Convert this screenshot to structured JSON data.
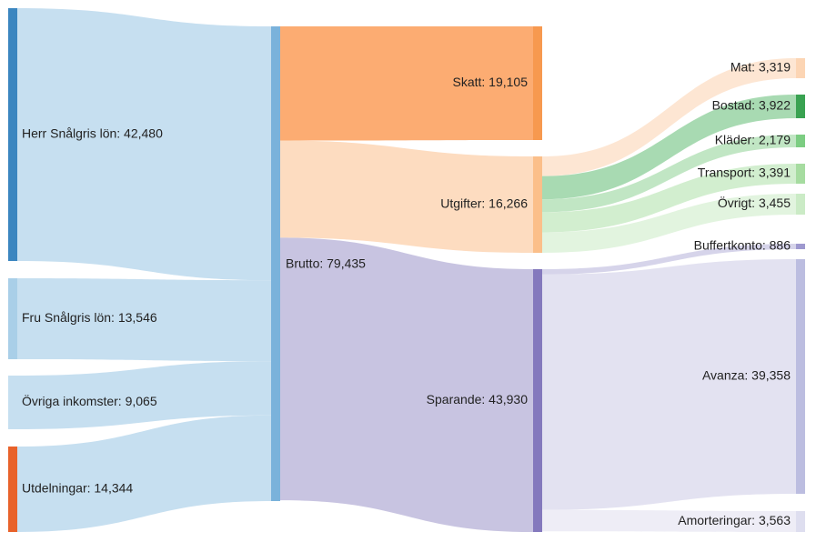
{
  "chart_data": {
    "type": "sankey",
    "nodes": [
      {
        "id": "herr",
        "label": "Herr Snålgris lön: 42,480",
        "value": 42480,
        "color": "#3b86c0"
      },
      {
        "id": "fru",
        "label": "Fru Snålgris lön: 13,546",
        "value": 13546,
        "color": "#a9cfe8"
      },
      {
        "id": "ovriga_ink",
        "label": "Övriga inkomster: 9,065",
        "value": 9065,
        "color": "#c6dff0"
      },
      {
        "id": "utdel",
        "label": "Utdelningar: 14,344",
        "value": 14344,
        "color": "#e8622a"
      },
      {
        "id": "brutto",
        "label": "Brutto: 79,435",
        "value": 79435,
        "color": "#7ab2db"
      },
      {
        "id": "skatt",
        "label": "Skatt: 19,105",
        "value": 19105,
        "color": "#f7994f"
      },
      {
        "id": "utgifter",
        "label": "Utgifter: 16,266",
        "value": 16266,
        "color": "#fbbf8a"
      },
      {
        "id": "sparande",
        "label": "Sparande: 43,930",
        "value": 43930,
        "color": "#8479bd"
      },
      {
        "id": "mat",
        "label": "Mat: 3,319",
        "value": 3319,
        "color": "#fcd5b4"
      },
      {
        "id": "bostad",
        "label": "Bostad: 3,922",
        "value": 3922,
        "color": "#39a251"
      },
      {
        "id": "klader",
        "label": "Kläder: 2,179",
        "value": 2179,
        "color": "#7ccd82"
      },
      {
        "id": "transport",
        "label": "Transport: 3,391",
        "value": 3391,
        "color": "#a6dca0"
      },
      {
        "id": "ovrigt",
        "label": "Övrigt: 3,455",
        "value": 3455,
        "color": "#cbebc6"
      },
      {
        "id": "buffert",
        "label": "Buffertkonto: 886",
        "value": 886,
        "color": "#9e99cf"
      },
      {
        "id": "avanza",
        "label": "Avanza: 39,358",
        "value": 39358,
        "color": "#bcbde0"
      },
      {
        "id": "amort",
        "label": "Amorteringar: 3,563",
        "value": 3563,
        "color": "#dedeef"
      }
    ],
    "links": [
      {
        "source": "herr",
        "target": "brutto",
        "value": 42480,
        "color": "#c6dff0"
      },
      {
        "source": "fru",
        "target": "brutto",
        "value": 13546,
        "color": "#c6dff0"
      },
      {
        "source": "ovriga_ink",
        "target": "brutto",
        "value": 9065,
        "color": "#c6dff0"
      },
      {
        "source": "utdel",
        "target": "brutto",
        "value": 14344,
        "color": "#c6dff0"
      },
      {
        "source": "brutto",
        "target": "skatt",
        "value": 19105,
        "color": "#fcac72"
      },
      {
        "source": "brutto",
        "target": "utgifter",
        "value": 16266,
        "color": "#fddcc0"
      },
      {
        "source": "brutto",
        "target": "sparande",
        "value": 43930,
        "color": "#c8c4e1"
      },
      {
        "source": "utgifter",
        "target": "mat",
        "value": 3319,
        "color": "#fde6d3"
      },
      {
        "source": "utgifter",
        "target": "bostad",
        "value": 3922,
        "color": "#a8dab2"
      },
      {
        "source": "utgifter",
        "target": "klader",
        "value": 2179,
        "color": "#c1e6c4"
      },
      {
        "source": "utgifter",
        "target": "transport",
        "value": 3391,
        "color": "#d2eecf"
      },
      {
        "source": "utgifter",
        "target": "ovrigt",
        "value": 3455,
        "color": "#e2f4df"
      },
      {
        "source": "sparande",
        "target": "buffert",
        "value": 886,
        "color": "#d6d4ea"
      },
      {
        "source": "sparande",
        "target": "avanza",
        "value": 39358,
        "color": "#e3e2f1"
      },
      {
        "source": "sparande",
        "target": "amort",
        "value": 3563,
        "color": "#eeedf6"
      }
    ]
  }
}
